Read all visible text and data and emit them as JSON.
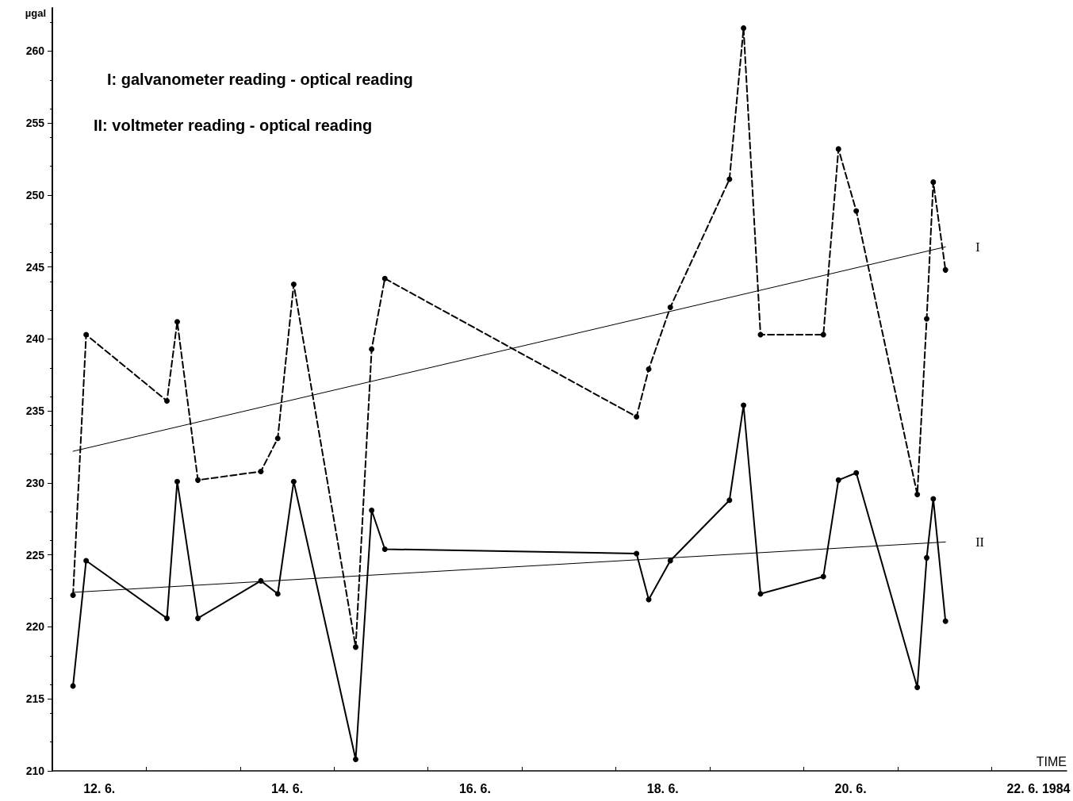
{
  "chart_data": {
    "type": "line",
    "xlabel": "TIME",
    "ylabel": "µgal",
    "annotations": [
      "I: galvanometer reading - optical reading",
      "II: voltmeter reading - optical reading"
    ],
    "x": [
      "1984-06-12T05:17",
      "1984-06-12T08:38",
      "1984-06-13T05:17",
      "1984-06-13T07:55",
      "1984-06-13T13:12",
      "1984-06-14T05:17",
      "1984-06-14T09:36",
      "1984-06-14T13:41",
      "1984-06-15T05:31",
      "1984-06-15T09:36",
      "1984-06-15T12:58",
      "1984-06-18T05:17",
      "1984-06-18T08:24",
      "1984-06-18T13:55",
      "1984-06-19T05:02",
      "1984-06-19T08:38",
      "1984-06-19T12:58",
      "1984-06-20T05:02",
      "1984-06-20T08:53",
      "1984-06-20T13:26",
      "1984-06-21T05:02",
      "1984-06-21T07:26",
      "1984-06-21T09:07",
      "1984-06-21T12:14"
    ],
    "xlim": [
      "1984-06-12T00:00",
      "1984-06-22T19:12"
    ],
    "xticks": [
      {
        "value": "1984-06-12T00:00",
        "label": null
      },
      {
        "value": "1984-06-13T00:00",
        "label": null
      },
      {
        "value": "1984-06-14T00:00",
        "label": null
      },
      {
        "value": "1984-06-15T00:00",
        "label": null
      },
      {
        "value": "1984-06-16T00:00",
        "label": null
      },
      {
        "value": "1984-06-17T00:00",
        "label": null
      },
      {
        "value": "1984-06-18T00:00",
        "label": null
      },
      {
        "value": "1984-06-19T00:00",
        "label": null
      },
      {
        "value": "1984-06-20T00:00",
        "label": null
      },
      {
        "value": "1984-06-21T00:00",
        "label": null
      },
      {
        "value": "1984-06-22T00:00",
        "label": null
      },
      {
        "value": "1984-06-12T12:00",
        "label": "12. 6."
      },
      {
        "value": "1984-06-14T12:00",
        "label": "14. 6."
      },
      {
        "value": "1984-06-16T12:00",
        "label": "16. 6."
      },
      {
        "value": "1984-06-18T12:00",
        "label": "18. 6."
      },
      {
        "value": "1984-06-20T12:00",
        "label": "20. 6."
      },
      {
        "value": "1984-06-22T12:00",
        "label": "22. 6. 1984"
      }
    ],
    "ylim": [
      210,
      263
    ],
    "yticks": [
      210,
      215,
      220,
      225,
      230,
      235,
      240,
      245,
      250,
      255,
      260
    ],
    "marker": "circle",
    "grid": false,
    "series": [
      {
        "color": "#000000",
        "line_style": "dashed",
        "values": [
          222.2,
          240.3,
          235.7,
          241.2,
          230.2,
          230.8,
          233.1,
          243.8,
          218.6,
          239.3,
          244.2,
          234.6,
          237.9,
          242.2,
          251.1,
          261.6,
          240.3,
          240.3,
          253.2,
          248.9,
          229.2,
          241.4,
          250.9,
          244.8
        ]
      },
      {
        "color": "#000000",
        "line_style": "solid",
        "values": [
          215.9,
          224.6,
          220.6,
          230.1,
          220.6,
          223.2,
          222.3,
          230.1,
          210.8,
          228.1,
          225.4,
          225.1,
          221.9,
          224.6,
          228.8,
          235.4,
          222.3,
          223.5,
          230.2,
          230.7,
          215.8,
          224.8,
          228.9,
          220.4
        ]
      },
      {
        "name": "I",
        "color": "#000000",
        "line_style": "solid",
        "marker": "none",
        "x": [
          "1984-06-12T05:17",
          "1984-06-21T12:14"
        ],
        "values": [
          232.2,
          246.4
        ]
      },
      {
        "name": "II",
        "color": "#000000",
        "line_style": "solid",
        "marker": "none",
        "x": [
          "1984-06-12T05:17",
          "1984-06-21T12:14"
        ],
        "values": [
          222.4,
          225.9
        ]
      }
    ]
  }
}
